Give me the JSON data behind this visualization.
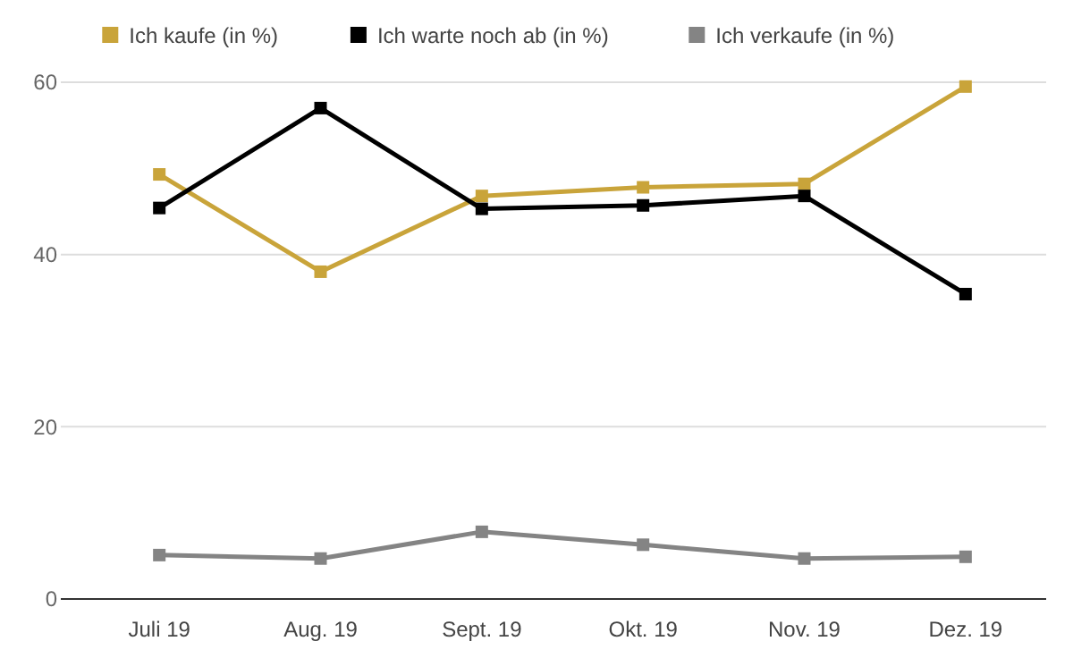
{
  "chart_data": {
    "type": "line",
    "categories": [
      "Juli 19",
      "Aug. 19",
      "Sept. 19",
      "Okt. 19",
      "Nov. 19",
      "Dez. 19"
    ],
    "series": [
      {
        "name": "Ich kaufe (in %)",
        "color": "#c9a43a",
        "values": [
          49.3,
          38.0,
          46.8,
          47.8,
          48.2,
          59.5
        ]
      },
      {
        "name": "Ich warte noch ab (in %)",
        "color": "#000000",
        "values": [
          45.4,
          57.0,
          45.3,
          45.7,
          46.8,
          35.4
        ]
      },
      {
        "name": "Ich verkaufe (in %)",
        "color": "#848484",
        "values": [
          5.1,
          4.7,
          7.8,
          6.3,
          4.7,
          4.9
        ]
      }
    ],
    "ylim": [
      0,
      60
    ],
    "yticks": [
      0,
      20,
      40,
      60
    ],
    "grid": "y",
    "legend": "top",
    "marker": "square",
    "line_style": "solid"
  }
}
